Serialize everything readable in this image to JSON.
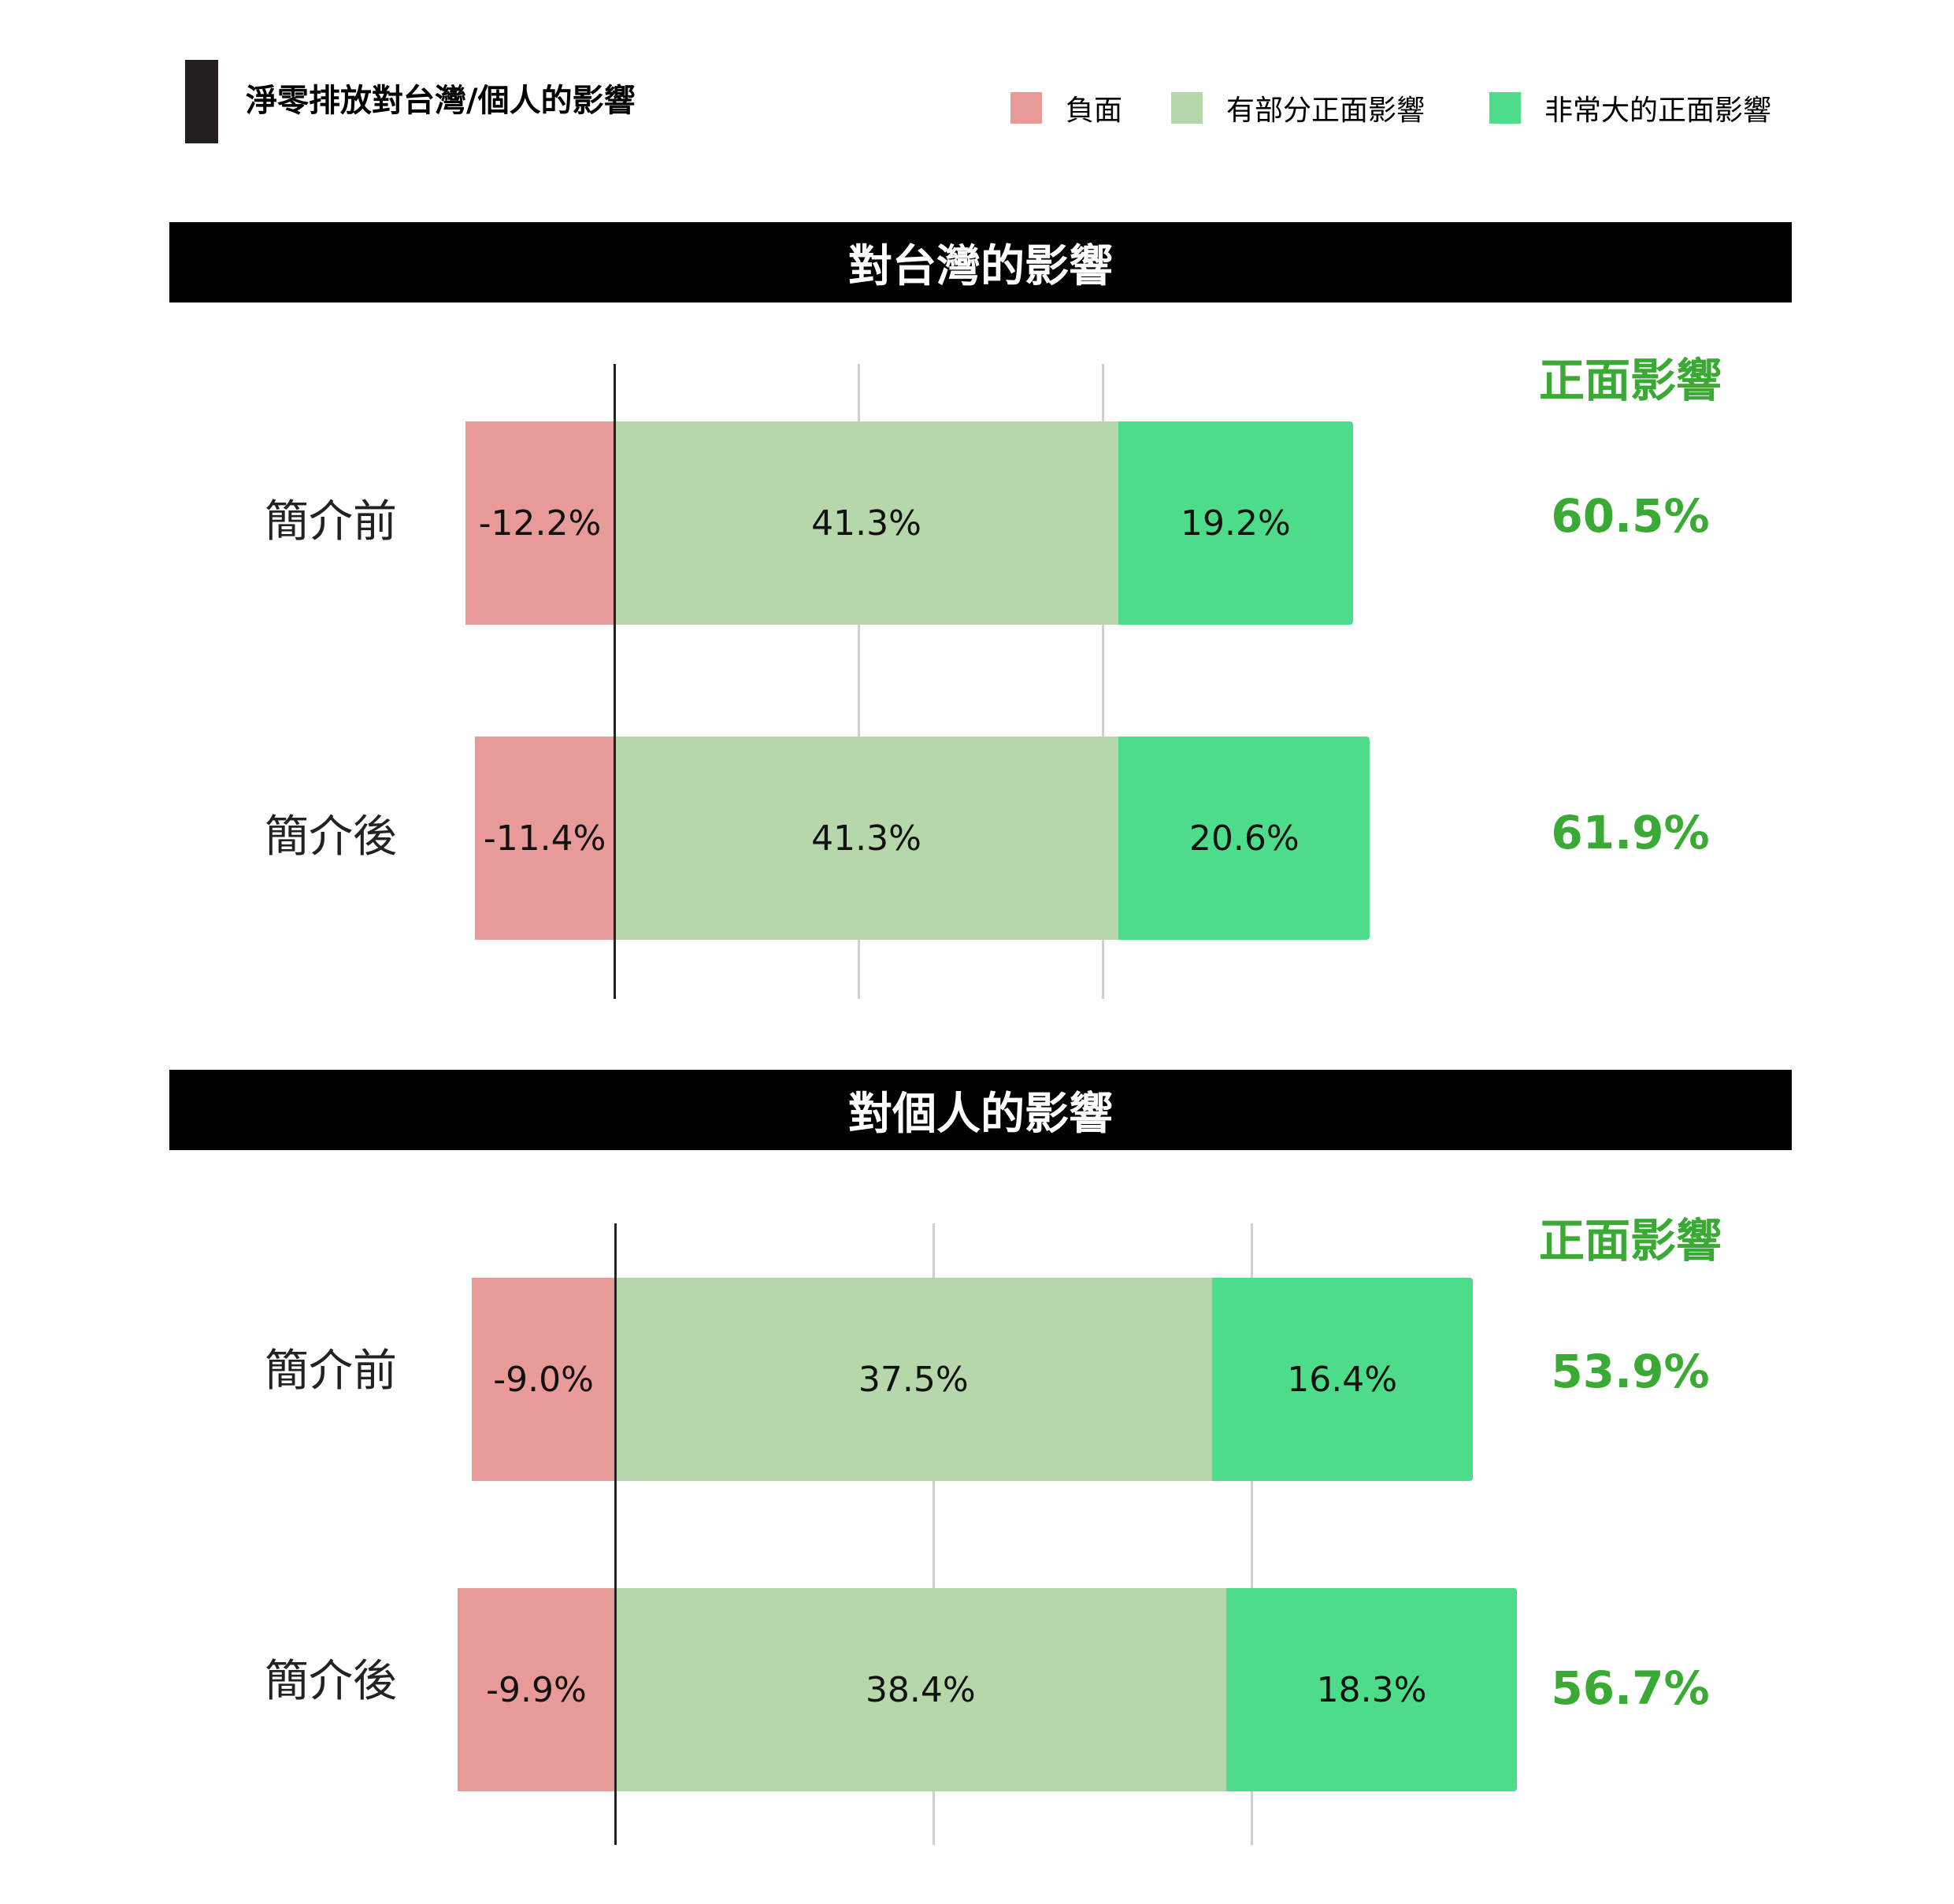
{
  "title": "淨零排放對台灣/個人的影響",
  "legend": [
    {
      "label": "負面",
      "color": "#e89a98"
    },
    {
      "label": "有部分正面影響",
      "color": "#b6d7aa"
    },
    {
      "label": "非常大的正面影響",
      "color": "#4cdc8a"
    }
  ],
  "positive_header": "正面影響",
  "chart_data": [
    {
      "type": "bar",
      "stacked": true,
      "orientation": "horizontal",
      "title": "對台灣的影響",
      "categories": [
        "簡介前",
        "簡介後"
      ],
      "series": [
        {
          "name": "負面",
          "values": [
            -12.2,
            -11.4
          ],
          "labels": [
            "-12.2%",
            "-11.4%"
          ],
          "color": "#e89a98"
        },
        {
          "name": "有部分正面影響",
          "values": [
            41.3,
            41.3
          ],
          "labels": [
            "41.3%",
            "41.3%"
          ],
          "color": "#b6d7aa"
        },
        {
          "name": "非常大的正面影響",
          "values": [
            19.2,
            20.6
          ],
          "labels": [
            "19.2%",
            "20.6%"
          ],
          "color": "#4cdc8a"
        }
      ],
      "positive_totals": [
        "60.5%",
        "61.9%"
      ],
      "grid": true
    },
    {
      "type": "bar",
      "stacked": true,
      "orientation": "horizontal",
      "title": "對個人的影響",
      "categories": [
        "簡介前",
        "簡介後"
      ],
      "series": [
        {
          "name": "負面",
          "values": [
            -9.0,
            -9.9
          ],
          "labels": [
            "-9.0%",
            "-9.9%"
          ],
          "color": "#e89a98"
        },
        {
          "name": "有部分正面影響",
          "values": [
            37.5,
            38.4
          ],
          "labels": [
            "37.5%",
            "38.4%"
          ],
          "color": "#b6d7aa"
        },
        {
          "name": "非常大的正面影響",
          "values": [
            16.4,
            18.3
          ],
          "labels": [
            "16.4%",
            "18.3%"
          ],
          "color": "#4cdc8a"
        }
      ],
      "positive_totals": [
        "53.9%",
        "56.7%"
      ],
      "grid": true
    }
  ]
}
